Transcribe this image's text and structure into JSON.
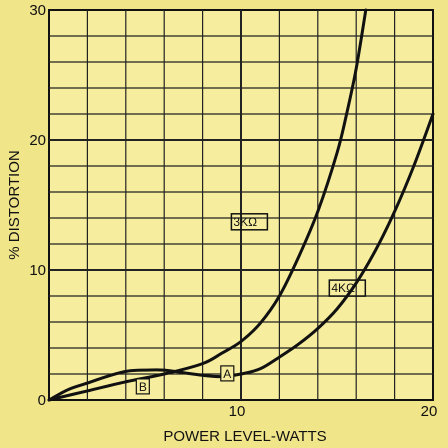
{
  "chart_data": {
    "type": "line",
    "xlabel": "POWER LEVEL-WATTS",
    "ylabel": "% DISTORTION",
    "xlim": [
      0,
      20
    ],
    "ylim": [
      0,
      30
    ],
    "x_ticks": [
      "10",
      "20"
    ],
    "y_ticks": [
      "0",
      "10",
      "20",
      "30"
    ],
    "grid": true,
    "background_color": "#f1e58a",
    "line_color": "#111111",
    "series": [
      {
        "name": "3KΩ",
        "marker": "A",
        "x": [
          0,
          2,
          4,
          6,
          8,
          9,
          10,
          11,
          12,
          13,
          14,
          15,
          15.5,
          16,
          16.5
        ],
        "y": [
          0,
          0.7,
          1.4,
          2.0,
          2.8,
          3.6,
          4.5,
          5.9,
          8.0,
          11.0,
          14.5,
          19.0,
          22.0,
          25.5,
          30.0
        ]
      },
      {
        "name": "4KΩ",
        "marker": "B",
        "x": [
          0,
          1,
          2,
          3,
          4,
          5,
          6,
          7,
          8,
          9,
          10,
          11,
          12,
          13,
          14,
          15,
          16,
          17,
          18,
          19,
          20
        ],
        "y": [
          0,
          0.8,
          1.3,
          1.8,
          2.2,
          2.3,
          2.3,
          2.1,
          1.9,
          1.8,
          2.0,
          2.4,
          3.3,
          4.3,
          5.5,
          7.0,
          9.0,
          11.5,
          14.5,
          18.0,
          22.0
        ]
      }
    ]
  }
}
